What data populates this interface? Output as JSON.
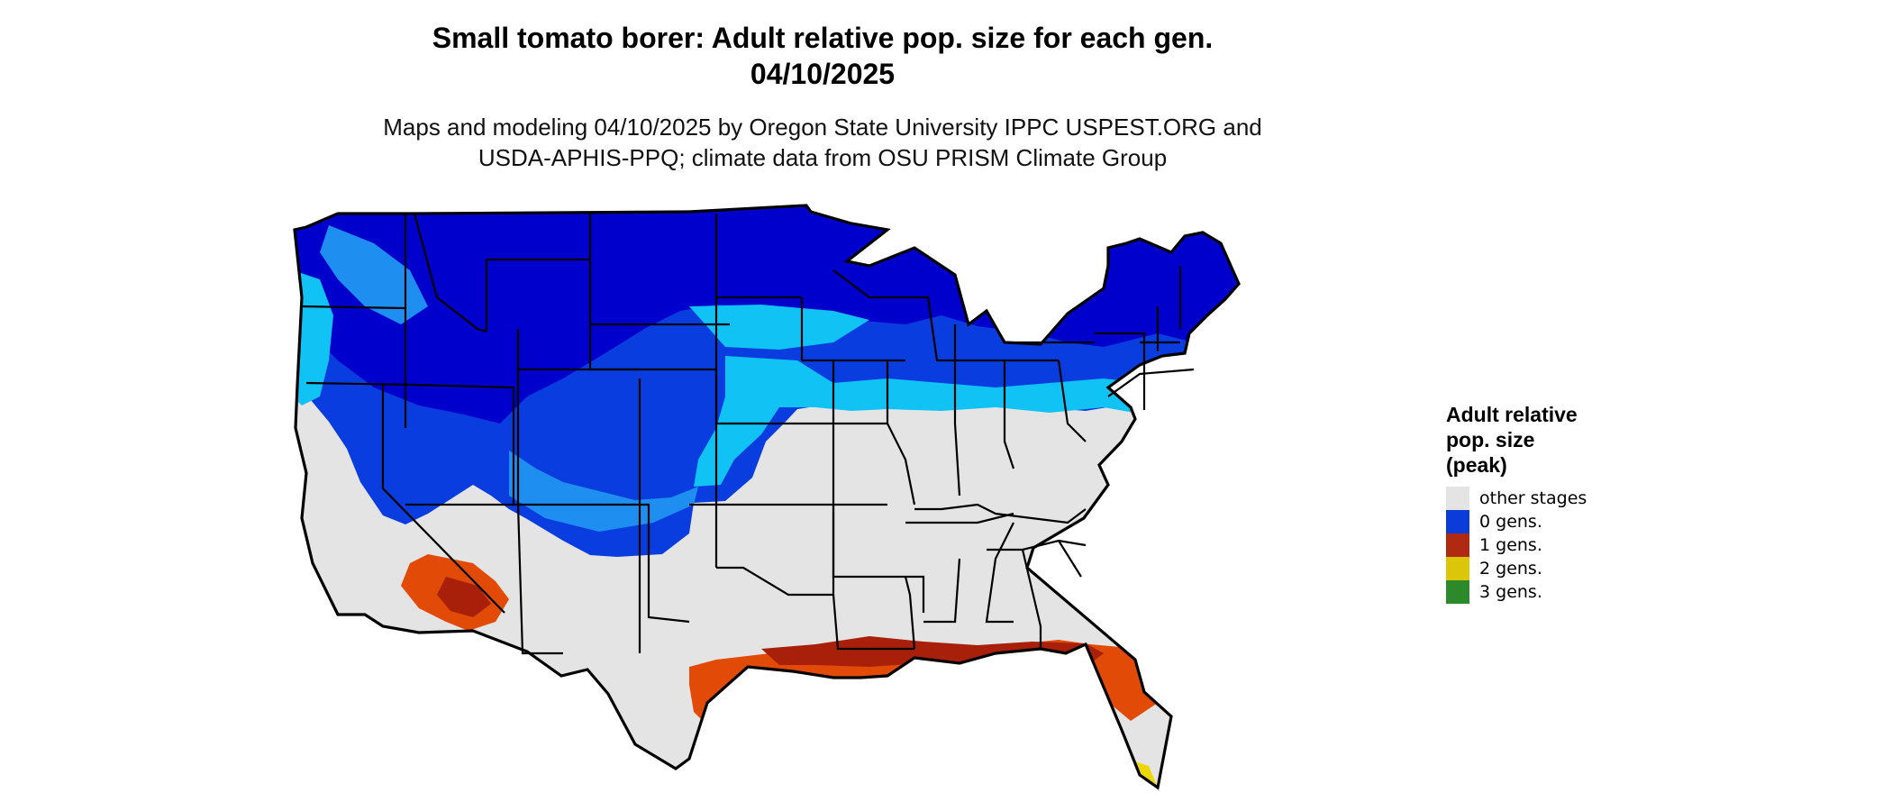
{
  "header": {
    "title_line1": "Small tomato borer: Adult relative pop. size for each gen.",
    "title_line2": "04/10/2025",
    "subtitle_line1": "Maps and modeling 04/10/2025 by Oregon State University IPPC USPEST.ORG and",
    "subtitle_line2": "USDA-APHIS-PPQ; climate data from OSU PRISM Climate Group"
  },
  "legend": {
    "title_line1": "Adult relative",
    "title_line2": "pop. size",
    "title_line3": "(peak)",
    "items": [
      {
        "label": "other stages",
        "color": "#e4e4e4"
      },
      {
        "label": "0 gens.",
        "color": "#0b3bd8"
      },
      {
        "label": "1 gens.",
        "color": "#b02a12"
      },
      {
        "label": "2 gens.",
        "color": "#dcc60a"
      },
      {
        "label": "3 gens.",
        "color": "#2c8a2a"
      }
    ]
  },
  "map": {
    "colors": {
      "land_other": "#e4e4e4",
      "dark_blue": "#0000cc",
      "mid_blue": "#0a3de0",
      "light_blue": "#1e8ff0",
      "cyan": "#11c2f5",
      "orange_red": "#e24a08",
      "dark_red": "#a8200a",
      "yellow": "#ecd80a",
      "border": "#000000"
    }
  }
}
